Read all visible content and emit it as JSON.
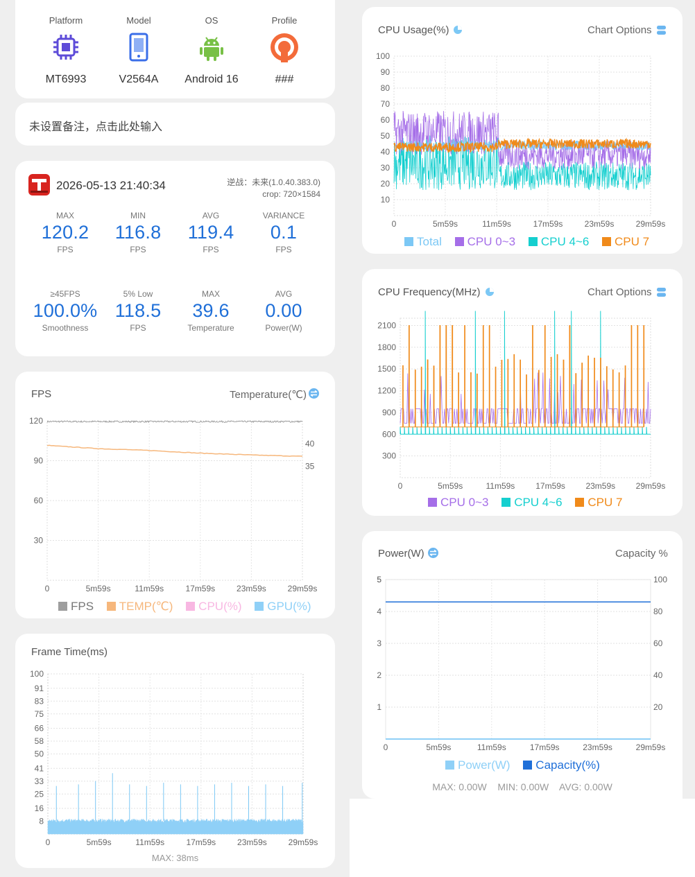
{
  "device": {
    "items": [
      {
        "label": "Platform",
        "value": "MT6993",
        "icon": "chip-icon"
      },
      {
        "label": "Model",
        "value": "V2564A",
        "icon": "phone-icon"
      },
      {
        "label": "OS",
        "value": "Android 16",
        "icon": "android-icon"
      },
      {
        "label": "Profile",
        "value": "###",
        "icon": "profile-icon"
      }
    ]
  },
  "note": {
    "text": "未设置备注，点击此处输入"
  },
  "session": {
    "datetime": "2026-05-13 21:40:34",
    "game": "逆战：未来(1.0.40.383.0)",
    "crop": "crop: 720×1584",
    "stats": [
      {
        "label": "MAX",
        "value": "120.2",
        "unit": "FPS"
      },
      {
        "label": "MIN",
        "value": "116.8",
        "unit": "FPS"
      },
      {
        "label": "AVG",
        "value": "119.4",
        "unit": "FPS"
      },
      {
        "label": "VARIANCE",
        "value": "0.1",
        "unit": "FPS"
      },
      {
        "label": "≥45FPS",
        "value": "100.0%",
        "unit": "Smoothness"
      },
      {
        "label": "5% Low",
        "value": "118.5",
        "unit": "FPS"
      },
      {
        "label": "MAX",
        "value": "39.6",
        "unit": "Temperature"
      },
      {
        "label": "AVG",
        "value": "0.00",
        "unit": "Power(W)"
      }
    ]
  },
  "colors": {
    "blue_value": "#1f6fd8",
    "total": "#7cc8f5",
    "cpu03": "#a56ee8",
    "cpu46": "#15cfcf",
    "cpu7": "#f08a1a",
    "fps": "#9e9e9e",
    "temp": "#f6b77c",
    "cpu_pct": "#f8b7e2",
    "gpu_pct": "#8fd0f7",
    "power": "#8fd0f7",
    "capacity": "#1f6fd8"
  },
  "fps_panel": {
    "title": "FPS",
    "right_title": "Temperature(℃)",
    "legend": [
      "FPS",
      "TEMP(℃)",
      "CPU(%)",
      "GPU(%)"
    ]
  },
  "frametime_panel": {
    "title": "Frame Time(ms)",
    "footer": "MAX: 38ms"
  },
  "cpu_usage_panel": {
    "title": "CPU Usage(%)",
    "options": "Chart Options",
    "legend": [
      "Total",
      "CPU 0~3",
      "CPU 4~6",
      "CPU 7"
    ]
  },
  "cpu_freq_panel": {
    "title": "CPU Frequency(MHz)",
    "options": "Chart Options",
    "legend": [
      "CPU 0~3",
      "CPU 4~6",
      "CPU 7"
    ]
  },
  "power_panel": {
    "title": "Power(W)",
    "right_title": "Capacity %",
    "legend": [
      "Power(W)",
      "Capacity(%)"
    ],
    "footer": "MAX: 0.00W    MIN: 0.00W    AVG: 0.00W"
  },
  "chart_data": [
    {
      "type": "line",
      "title": "FPS",
      "x_ticks": [
        "0",
        "5m59s",
        "11m59s",
        "17m59s",
        "23m59s",
        "29m59s"
      ],
      "y_ticks": [
        "30",
        "60",
        "90",
        "120"
      ],
      "y2_ticks": [
        "35",
        "40"
      ],
      "ylim": [
        0,
        120
      ],
      "series": [
        {
          "name": "FPS",
          "x": [
            0,
            6,
            12,
            18,
            24,
            30
          ],
          "values": [
            119.5,
            119.4,
            119.5,
            119.3,
            119.4,
            119.5
          ]
        },
        {
          "name": "TEMP(℃)",
          "axis": "right",
          "x": [
            0,
            6,
            12,
            18,
            24,
            30
          ],
          "values": [
            39.6,
            38.9,
            38.5,
            37.9,
            37.5,
            37.2
          ]
        }
      ]
    },
    {
      "type": "bar",
      "title": "Frame Time(ms)",
      "x_ticks": [
        "0",
        "5m59s",
        "11m59s",
        "17m59s",
        "23m59s",
        "29m59s"
      ],
      "y_ticks": [
        "8",
        "16",
        "25",
        "33",
        "41",
        "50",
        "58",
        "66",
        "75",
        "83",
        "91",
        "100"
      ],
      "ylim": [
        0,
        100
      ],
      "typical_value": 8.3,
      "max": 38
    },
    {
      "type": "line",
      "title": "CPU Usage(%)",
      "x_ticks": [
        "0",
        "5m59s",
        "11m59s",
        "17m59s",
        "23m59s",
        "29m59s"
      ],
      "y_ticks": [
        "10",
        "20",
        "30",
        "40",
        "50",
        "60",
        "70",
        "80",
        "90",
        "100"
      ],
      "ylim": [
        0,
        100
      ],
      "series": [
        {
          "name": "Total",
          "x": [
            0,
            12,
            30
          ],
          "values": [
            44,
            44,
            43
          ]
        },
        {
          "name": "CPU 0~3",
          "x": [
            0,
            12,
            12.5,
            30
          ],
          "values": [
            52,
            50,
            38,
            38
          ]
        },
        {
          "name": "CPU 4~6",
          "x": [
            0,
            12,
            12.5,
            30
          ],
          "values": [
            33,
            32,
            25,
            25
          ]
        },
        {
          "name": "CPU 7",
          "x": [
            0,
            12,
            12.5,
            30
          ],
          "values": [
            44,
            43,
            45,
            45
          ]
        }
      ]
    },
    {
      "type": "line",
      "title": "CPU Frequency(MHz)",
      "x_ticks": [
        "0",
        "5m59s",
        "11m59s",
        "17m59s",
        "23m59s",
        "29m59s"
      ],
      "y_ticks": [
        "300",
        "600",
        "900",
        "1200",
        "1500",
        "1800",
        "2100"
      ],
      "ylim": [
        0,
        2200
      ],
      "series": [
        {
          "name": "CPU 0~3",
          "typical": 850,
          "peak": 1400
        },
        {
          "name": "CPU 4~6",
          "typical": 600,
          "peak": 2300
        },
        {
          "name": "CPU 7",
          "typical": 700,
          "peak": 2100
        }
      ]
    },
    {
      "type": "line",
      "title": "Power(W)",
      "x_ticks": [
        "0",
        "5m59s",
        "11m59s",
        "17m59s",
        "23m59s",
        "29m59s"
      ],
      "y_ticks": [
        "1",
        "2",
        "3",
        "4",
        "5"
      ],
      "y2_ticks": [
        "20",
        "40",
        "60",
        "80",
        "100"
      ],
      "ylim": [
        0,
        5
      ],
      "y2lim": [
        0,
        100
      ],
      "series": [
        {
          "name": "Power(W)",
          "x": [
            0,
            30
          ],
          "values": [
            0,
            0
          ]
        },
        {
          "name": "Capacity(%)",
          "axis": "right",
          "x": [
            0,
            30
          ],
          "values": [
            86,
            86
          ]
        }
      ]
    }
  ]
}
